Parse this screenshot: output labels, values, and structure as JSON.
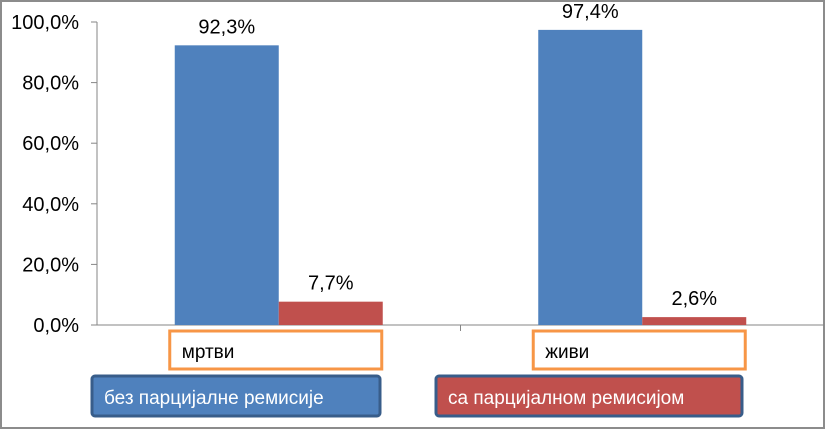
{
  "chart_data": {
    "type": "bar",
    "categories": [
      "мртви",
      "живи"
    ],
    "series": [
      {
        "name": "без парцијалне ремисије",
        "values": [
          92.3,
          97.4
        ],
        "labels": [
          "92,3%",
          "97,4%"
        ],
        "color": "#4F81BD"
      },
      {
        "name": "са парцијалном ремисијом",
        "values": [
          7.7,
          2.6
        ],
        "labels": [
          "7,7%",
          "2,6%"
        ],
        "color": "#C0504D"
      }
    ],
    "y_ticks": [
      "0,0%",
      "20,0%",
      "40,0%",
      "60,0%",
      "80,0%",
      "100,0%"
    ],
    "ylim": [
      0,
      100
    ],
    "grid": false,
    "legend": "bottom",
    "colors": {
      "category_box_border": "#F79646",
      "legend_box_border": "#385D8A",
      "frame": "#8C8C8C"
    }
  }
}
